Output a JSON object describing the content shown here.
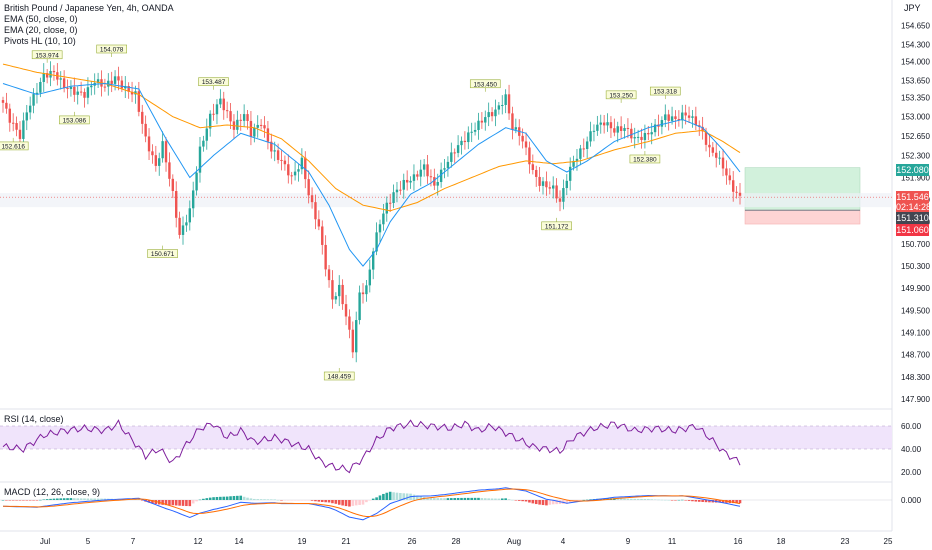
{
  "header": {
    "symbol_line": "British Pound / Japanese Yen, 4h, OANDA",
    "indicators": [
      "EMA (50, close, 0)",
      "EMA (20, close, 0)",
      "Pivots HL (10, 10)"
    ],
    "currency": "JPY"
  },
  "rsi_label": "RSI (14, close)",
  "macd_label": "MACD (12, 26, close, 9)",
  "colors": {
    "up": "#26a69a",
    "down": "#ef5350",
    "ema20": "#2196f3",
    "ema50": "#ff9800",
    "rsi": "#7e1e9c",
    "rsi_band": "#f0e4fb",
    "profit": "#d2f1dc",
    "loss": "#fdd4d4",
    "pivot_bg": "#fafcd9",
    "pivot_border": "#9bb03b"
  },
  "price_tags": {
    "target": "152.080",
    "last_price": "151.546",
    "countdown": "02:14:28",
    "entry": "151.310",
    "stop": "151.060"
  },
  "chart_data": [
    {
      "type": "candlestick",
      "title": "British Pound / Japanese Yen, 4h, OANDA",
      "y_ticks": [
        147.9,
        148.3,
        148.7,
        149.1,
        149.5,
        149.9,
        150.3,
        150.7,
        151.1,
        151.5,
        151.9,
        152.3,
        152.65,
        153.0,
        153.35,
        153.65,
        154.0,
        154.3,
        154.65
      ],
      "y_tick_labels": [
        "147.900",
        "148.300",
        "148.700",
        "149.100",
        "149.500",
        "149.900",
        "150.300",
        "150.700",
        "151.100",
        "151.500",
        "151.900",
        "152.300",
        "152.650",
        "153.000",
        "153.350",
        "153.650",
        "154.000",
        "154.300",
        "154.650"
      ],
      "x_tick_labels": [
        "Jul",
        "5",
        "7",
        "12",
        "14",
        "19",
        "21",
        "26",
        "28",
        "Aug",
        "4",
        "9",
        "11",
        "16",
        "18",
        "23",
        "25"
      ],
      "close_path": [
        [
          0,
          153.25
        ],
        [
          2,
          152.95
        ],
        [
          5,
          152.65
        ],
        [
          7,
          153.1
        ],
        [
          9,
          153.35
        ],
        [
          12,
          153.75
        ],
        [
          15,
          153.8
        ],
        [
          18,
          153.55
        ],
        [
          21,
          153.45
        ],
        [
          24,
          153.4
        ],
        [
          27,
          153.65
        ],
        [
          30,
          153.55
        ],
        [
          33,
          153.7
        ],
        [
          36,
          153.5
        ],
        [
          39,
          153.4
        ],
        [
          42,
          152.6
        ],
        [
          45,
          152.1
        ],
        [
          47,
          152.5
        ],
        [
          50,
          151.6
        ],
        [
          52,
          150.85
        ],
        [
          55,
          151.3
        ],
        [
          58,
          152.4
        ],
        [
          61,
          153.0
        ],
        [
          64,
          153.3
        ],
        [
          66,
          153.05
        ],
        [
          68,
          152.8
        ],
        [
          71,
          153.05
        ],
        [
          73,
          152.7
        ],
        [
          76,
          152.9
        ],
        [
          79,
          152.4
        ],
        [
          82,
          152.2
        ],
        [
          85,
          151.9
        ],
        [
          88,
          152.2
        ],
        [
          90,
          151.6
        ],
        [
          93,
          151.0
        ],
        [
          95,
          150.3
        ],
        [
          97,
          149.7
        ],
        [
          99,
          149.9
        ],
        [
          101,
          149.4
        ],
        [
          103,
          148.8
        ],
        [
          105,
          149.8
        ],
        [
          107,
          149.9
        ],
        [
          109,
          150.6
        ],
        [
          111,
          151.1
        ],
        [
          113,
          151.4
        ],
        [
          115,
          151.6
        ],
        [
          118,
          151.8
        ],
        [
          121,
          151.9
        ],
        [
          124,
          152.1
        ],
        [
          127,
          151.75
        ],
        [
          130,
          152.1
        ],
        [
          133,
          152.4
        ],
        [
          136,
          152.6
        ],
        [
          139,
          152.8
        ],
        [
          142,
          153.0
        ],
        [
          145,
          153.1
        ],
        [
          148,
          153.35
        ],
        [
          150,
          152.8
        ],
        [
          152,
          152.7
        ],
        [
          154,
          152.4
        ],
        [
          156,
          152.0
        ],
        [
          158,
          151.8
        ],
        [
          160,
          151.75
        ],
        [
          162,
          151.7
        ],
        [
          164,
          151.45
        ],
        [
          166,
          151.9
        ],
        [
          168,
          152.2
        ],
        [
          171,
          152.45
        ],
        [
          174,
          152.8
        ],
        [
          177,
          152.9
        ],
        [
          180,
          152.75
        ],
        [
          183,
          152.8
        ],
        [
          186,
          152.6
        ],
        [
          189,
          152.65
        ],
        [
          192,
          152.8
        ],
        [
          195,
          153.0
        ],
        [
          198,
          152.95
        ],
        [
          201,
          153.05
        ],
        [
          204,
          152.9
        ],
        [
          206,
          152.7
        ],
        [
          208,
          152.4
        ],
        [
          210,
          152.3
        ],
        [
          212,
          152.1
        ],
        [
          214,
          151.8
        ],
        [
          216,
          151.6
        ],
        [
          217,
          151.546
        ]
      ],
      "ema20": [
        [
          0,
          153.6
        ],
        [
          10,
          153.4
        ],
        [
          20,
          153.55
        ],
        [
          30,
          153.6
        ],
        [
          40,
          153.5
        ],
        [
          48,
          152.6
        ],
        [
          55,
          151.9
        ],
        [
          62,
          152.3
        ],
        [
          70,
          152.7
        ],
        [
          80,
          152.5
        ],
        [
          90,
          152.0
        ],
        [
          96,
          151.4
        ],
        [
          102,
          150.6
        ],
        [
          106,
          150.3
        ],
        [
          110,
          150.6
        ],
        [
          114,
          151.1
        ],
        [
          120,
          151.6
        ],
        [
          126,
          151.8
        ],
        [
          132,
          152.1
        ],
        [
          140,
          152.5
        ],
        [
          148,
          152.8
        ],
        [
          154,
          152.7
        ],
        [
          160,
          152.2
        ],
        [
          166,
          152.0
        ],
        [
          172,
          152.2
        ],
        [
          180,
          152.55
        ],
        [
          190,
          152.8
        ],
        [
          200,
          152.95
        ],
        [
          206,
          152.8
        ],
        [
          212,
          152.4
        ],
        [
          217,
          152.0
        ]
      ],
      "ema50": [
        [
          0,
          153.95
        ],
        [
          10,
          153.8
        ],
        [
          20,
          153.7
        ],
        [
          30,
          153.6
        ],
        [
          40,
          153.4
        ],
        [
          50,
          153.0
        ],
        [
          58,
          152.8
        ],
        [
          66,
          152.85
        ],
        [
          74,
          152.8
        ],
        [
          82,
          152.6
        ],
        [
          90,
          152.2
        ],
        [
          98,
          151.7
        ],
        [
          106,
          151.4
        ],
        [
          114,
          151.3
        ],
        [
          122,
          151.45
        ],
        [
          130,
          151.7
        ],
        [
          138,
          151.9
        ],
        [
          146,
          152.1
        ],
        [
          154,
          152.2
        ],
        [
          162,
          152.15
        ],
        [
          170,
          152.2
        ],
        [
          180,
          152.4
        ],
        [
          190,
          152.55
        ],
        [
          198,
          152.7
        ],
        [
          206,
          152.75
        ],
        [
          212,
          152.55
        ],
        [
          217,
          152.35
        ]
      ],
      "pivots": [
        {
          "label": "153.974",
          "i": 13,
          "v": 153.974,
          "pos": "top"
        },
        {
          "label": "154.078",
          "i": 32,
          "v": 154.078,
          "pos": "top"
        },
        {
          "label": "153.487",
          "i": 62,
          "v": 153.487,
          "pos": "top"
        },
        {
          "label": "153.450",
          "i": 142,
          "v": 153.45,
          "pos": "top"
        },
        {
          "label": "153.250",
          "i": 182,
          "v": 153.25,
          "pos": "top"
        },
        {
          "label": "153.318",
          "i": 195,
          "v": 153.318,
          "pos": "top"
        },
        {
          "label": "153.086",
          "i": 21,
          "v": 153.086,
          "pos": "bottom"
        },
        {
          "label": "152.616",
          "i": 3,
          "v": 152.616,
          "pos": "bottom"
        },
        {
          "label": "150.671",
          "i": 47,
          "v": 150.671,
          "pos": "bottom"
        },
        {
          "label": "148.459",
          "i": 99,
          "v": 148.459,
          "pos": "bottom"
        },
        {
          "label": "151.172",
          "i": 163,
          "v": 151.172,
          "pos": "bottom"
        },
        {
          "label": "152.380",
          "i": 189,
          "v": 152.38,
          "pos": "bottom"
        }
      ],
      "position_tool": {
        "entry": 151.31,
        "target": 152.08,
        "stop": 151.06
      }
    },
    {
      "type": "line",
      "title": "RSI (14, close)",
      "y_ticks": [
        20,
        40,
        60
      ],
      "y_tick_labels": [
        "20.00",
        "40.00",
        "60.00"
      ],
      "band": [
        40,
        60
      ],
      "rsi_path": [
        [
          0,
          42
        ],
        [
          6,
          40
        ],
        [
          12,
          52
        ],
        [
          18,
          56
        ],
        [
          24,
          58
        ],
        [
          30,
          56
        ],
        [
          34,
          62
        ],
        [
          38,
          48
        ],
        [
          42,
          34
        ],
        [
          46,
          40
        ],
        [
          50,
          28
        ],
        [
          54,
          44
        ],
        [
          58,
          58
        ],
        [
          62,
          62
        ],
        [
          66,
          50
        ],
        [
          70,
          56
        ],
        [
          74,
          46
        ],
        [
          80,
          50
        ],
        [
          86,
          44
        ],
        [
          90,
          40
        ],
        [
          94,
          28
        ],
        [
          98,
          24
        ],
        [
          102,
          22
        ],
        [
          106,
          32
        ],
        [
          110,
          48
        ],
        [
          114,
          58
        ],
        [
          120,
          62
        ],
        [
          126,
          60
        ],
        [
          132,
          58
        ],
        [
          136,
          62
        ],
        [
          140,
          56
        ],
        [
          144,
          60
        ],
        [
          148,
          54
        ],
        [
          152,
          48
        ],
        [
          156,
          42
        ],
        [
          160,
          40
        ],
        [
          164,
          38
        ],
        [
          168,
          50
        ],
        [
          174,
          58
        ],
        [
          180,
          62
        ],
        [
          186,
          56
        ],
        [
          192,
          58
        ],
        [
          198,
          56
        ],
        [
          204,
          60
        ],
        [
          208,
          50
        ],
        [
          212,
          38
        ],
        [
          217,
          28
        ]
      ]
    },
    {
      "type": "bar",
      "title": "MACD (12, 26, close, 9)",
      "y_ticks": [
        0
      ],
      "y_tick_labels": [
        "0.000"
      ]
    }
  ]
}
